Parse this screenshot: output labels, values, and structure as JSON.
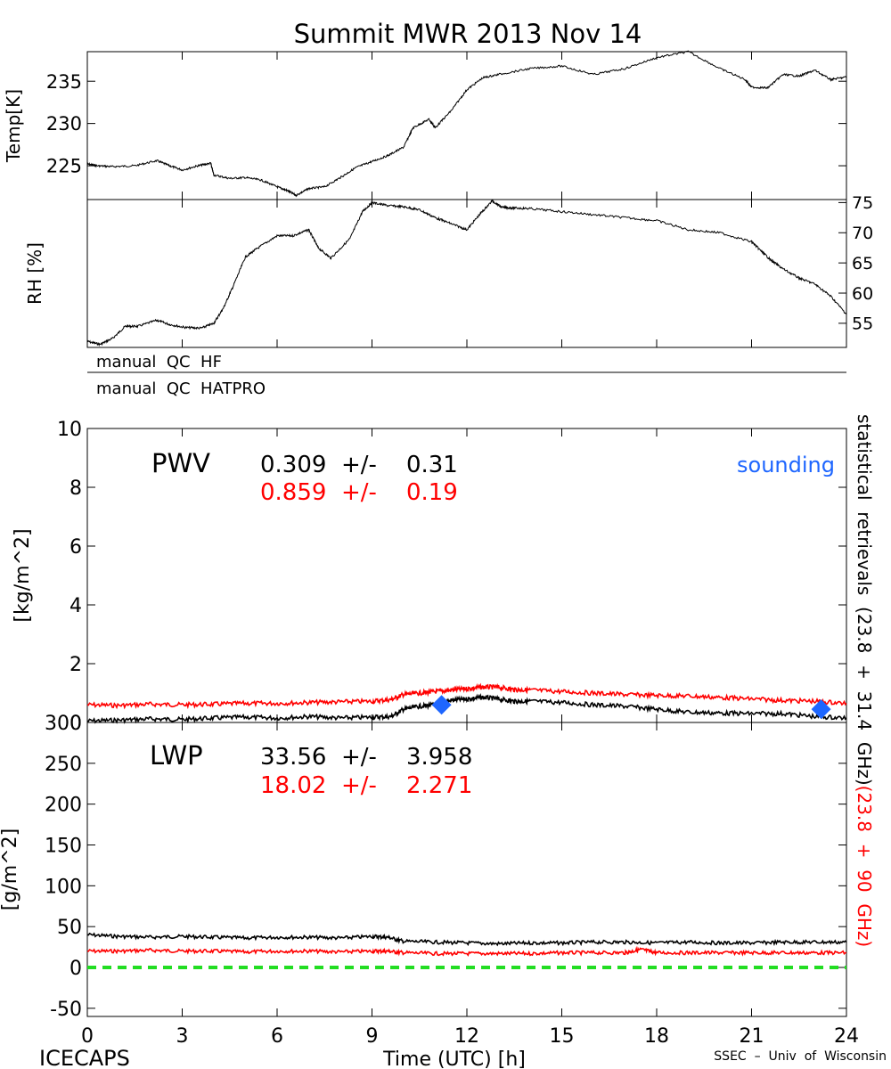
{
  "chart_data": [
    {
      "type": "line",
      "panel": "temperature",
      "title": "Summit MWR 2013 Nov 14",
      "ylabel": "Temp[K]",
      "xlim": [
        0,
        24
      ],
      "ylim": [
        221,
        238.5
      ],
      "yticks": [
        225,
        230,
        235
      ],
      "color": "#000000",
      "x": [
        0,
        0.3,
        0.8,
        1.5,
        2.2,
        2.6,
        3.0,
        3.5,
        3.9,
        4.0,
        4.5,
        5.0,
        5.5,
        6.0,
        6.3,
        6.6,
        7.0,
        7.5,
        8.0,
        8.5,
        9.0,
        9.5,
        10.0,
        10.3,
        10.8,
        11.0,
        11.5,
        12.0,
        12.5,
        13.0,
        14.0,
        15.0,
        16.0,
        17.0,
        18.0,
        19.0,
        20.0,
        20.8,
        21.0,
        21.5,
        22.0,
        22.5,
        23.0,
        23.5,
        24.0
      ],
      "y": [
        225.2,
        225.0,
        224.9,
        225.0,
        225.6,
        225.0,
        224.5,
        225.0,
        225.3,
        223.9,
        223.5,
        223.6,
        223.3,
        222.5,
        222.1,
        221.5,
        222.3,
        222.5,
        223.6,
        224.8,
        225.5,
        226.2,
        227.2,
        229.5,
        230.5,
        229.5,
        231.5,
        234.0,
        235.4,
        235.8,
        236.5,
        236.8,
        235.8,
        236.5,
        237.8,
        238.5,
        236.5,
        235.2,
        234.3,
        234.2,
        235.8,
        235.6,
        236.3,
        235.2,
        235.5
      ]
    },
    {
      "type": "line",
      "panel": "relative-humidity",
      "ylabel": "RH [%]",
      "xlim": [
        0,
        24
      ],
      "ylim": [
        51,
        75.5
      ],
      "yticks": [
        55,
        60,
        65,
        70,
        75
      ],
      "color": "#000000",
      "x": [
        0,
        0.4,
        0.8,
        1.2,
        1.6,
        2.2,
        2.6,
        3.1,
        3.6,
        4.0,
        4.3,
        4.6,
        5.0,
        5.4,
        6.0,
        6.5,
        7.0,
        7.3,
        7.7,
        8.3,
        8.7,
        9.0,
        9.5,
        10.0,
        10.5,
        11.0,
        11.5,
        12.0,
        12.4,
        12.8,
        13.1,
        13.5,
        14.0,
        15.0,
        16.0,
        17.0,
        18.0,
        19.0,
        20.0,
        21.0,
        21.3,
        21.6,
        22.0,
        22.5,
        23.0,
        23.5,
        24.0
      ],
      "y": [
        52.0,
        51.5,
        52.5,
        54.5,
        54.5,
        55.5,
        54.8,
        54.3,
        54.2,
        55.0,
        57.5,
        61.0,
        66.0,
        67.5,
        69.5,
        69.5,
        70.5,
        67.5,
        65.8,
        69.0,
        73.5,
        75.0,
        74.5,
        74.3,
        73.8,
        72.5,
        71.5,
        70.5,
        73.0,
        75.3,
        74.2,
        74.1,
        74.0,
        73.5,
        73.0,
        72.5,
        72.0,
        70.5,
        70.0,
        68.5,
        67.0,
        65.5,
        64.0,
        62.5,
        61.5,
        59.5,
        56.5
      ]
    },
    {
      "type": "flags",
      "panel": "quality-control",
      "rows": [
        "manual  QC  HF",
        "manual  QC  HATPRO"
      ]
    },
    {
      "type": "line",
      "panel": "pwv",
      "ylabel": "[kg/m^2]",
      "label": "PWV",
      "xlim": [
        0,
        24
      ],
      "ylim": [
        0,
        10
      ],
      "yticks": [
        0,
        2,
        4,
        6,
        8,
        10
      ],
      "series": [
        {
          "color": "#000000",
          "stat_text": "0.309  +/-    0.31",
          "x": [
            0,
            1,
            2,
            3,
            4,
            5,
            6,
            7,
            8,
            9,
            9.6,
            10.0,
            10.5,
            11.0,
            11.5,
            12.0,
            12.5,
            13.0,
            13.5,
            14.0,
            15.0,
            16.0,
            17.0,
            18.0,
            19.0,
            20.0,
            21.0,
            22.0,
            23.0,
            24.0
          ],
          "y": [
            0.05,
            0.08,
            0.12,
            0.1,
            0.15,
            0.18,
            0.15,
            0.2,
            0.15,
            0.18,
            0.2,
            0.45,
            0.55,
            0.6,
            0.75,
            0.8,
            0.85,
            0.8,
            0.72,
            0.72,
            0.68,
            0.6,
            0.55,
            0.45,
            0.35,
            0.32,
            0.3,
            0.3,
            0.2,
            0.15
          ]
        },
        {
          "color": "#ff0000",
          "stat_text": "0.859  +/-    0.19",
          "x": [
            0,
            1,
            2,
            3,
            4,
            5,
            6,
            7,
            8,
            9,
            9.6,
            10.0,
            10.5,
            11.0,
            11.5,
            12.0,
            12.5,
            13.0,
            13.5,
            14.0,
            15.0,
            16.0,
            17.0,
            18.0,
            19.0,
            20.0,
            21.0,
            22.0,
            23.0,
            24.0
          ],
          "y": [
            0.6,
            0.58,
            0.62,
            0.6,
            0.62,
            0.65,
            0.65,
            0.68,
            0.7,
            0.72,
            0.78,
            0.95,
            1.0,
            1.05,
            1.1,
            1.15,
            1.2,
            1.2,
            1.12,
            1.1,
            1.05,
            1.0,
            0.95,
            0.92,
            0.9,
            0.85,
            0.8,
            0.75,
            0.72,
            0.65
          ]
        }
      ],
      "sounding": {
        "label": "sounding",
        "color": "#1e66ff",
        "x": [
          11.2,
          23.2
        ],
        "y": [
          0.6,
          0.45
        ]
      }
    },
    {
      "type": "line",
      "panel": "lwp",
      "ylabel": "[g/m^2]",
      "label": "LWP",
      "xlabel": "Time (UTC) [h]",
      "xlim": [
        0,
        24
      ],
      "ylim": [
        -60,
        300
      ],
      "yticks": [
        -50,
        0,
        50,
        100,
        150,
        200,
        250,
        300
      ],
      "xticks": [
        0,
        3,
        6,
        9,
        12,
        15,
        18,
        21,
        24
      ],
      "series": [
        {
          "color": "#000000",
          "stat_text": "33.56  +/-    3.958",
          "x": [
            0,
            1,
            2,
            3,
            4,
            5,
            6,
            7,
            8,
            9,
            9.5,
            10.0,
            11.0,
            12.0,
            13.0,
            14.0,
            15.0,
            16.0,
            17.0,
            18.0,
            19.0,
            20.0,
            21.0,
            22.0,
            23.0,
            24.0
          ],
          "y": [
            40,
            38,
            37,
            38,
            37,
            36,
            37,
            37,
            36,
            38,
            37,
            32,
            31,
            30,
            29,
            30,
            30,
            31,
            31,
            30,
            31,
            30,
            30,
            31,
            31,
            31
          ]
        },
        {
          "color": "#ff0000",
          "stat_text": "18.02  +/-    2.271",
          "x": [
            0,
            1,
            2,
            3,
            4,
            5,
            6,
            7,
            8,
            9,
            9.5,
            10.0,
            11.0,
            12.0,
            13.0,
            14.0,
            15.0,
            16.0,
            17.0,
            17.5,
            18.0,
            19.0,
            20.0,
            21.0,
            22.0,
            23.0,
            24.0
          ],
          "y": [
            20,
            20,
            21,
            20,
            20,
            19,
            20,
            20,
            19,
            20,
            20,
            18,
            17,
            17,
            17,
            17,
            18,
            18,
            18,
            22,
            18,
            18,
            18,
            18,
            18,
            18,
            18
          ]
        }
      ],
      "zero_line": {
        "y": 0,
        "color": "#22dd22"
      }
    }
  ],
  "side_label": {
    "black_part": "statistical  retrievals  (23.8  +  31.4  GHz)",
    "red_part": "(23.8  +  90  GHz)"
  },
  "footer": {
    "left": "ICECAPS",
    "right": "SSEC  –  Univ  of  Wisconsin"
  }
}
